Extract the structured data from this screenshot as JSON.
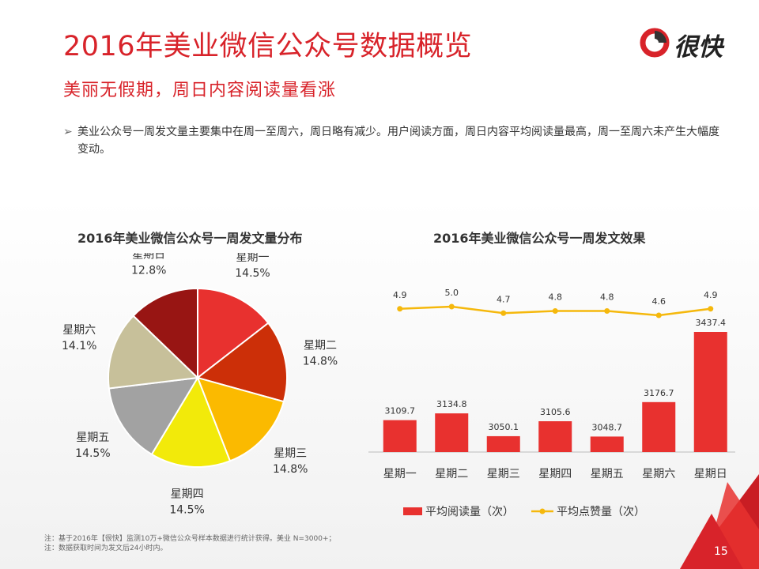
{
  "title": "2016年美业微信公众号数据概览",
  "subtitle": "美丽无假期，周日内容阅读量看涨",
  "logo_text": "很快",
  "bullet": "美业公众号一周发文量主要集中在周一至周六，周日略有减少。用户阅读方面，周日内容平均阅读量最高，周一至周六未产生大幅度变动。",
  "footnote": {
    "line1": "注：基于2016年【很快】监测10万+微信公众号样本数据进行统计获得。美业 N=3000+；",
    "line2": "注：数据获取时间为发文后24小时内。"
  },
  "page_number": "15",
  "colors": {
    "brand_red": "#d8232a",
    "bar_red": "#e8312f",
    "line_yellow": "#f5b80c"
  },
  "chart_data": [
    {
      "type": "pie",
      "title": "2016年美业微信公众号一周发文量分布",
      "slices": [
        {
          "label": "星期一",
          "value": 14.5,
          "display": "14.5%",
          "color": "#e8312f"
        },
        {
          "label": "星期二",
          "value": 14.8,
          "display": "14.8%",
          "color": "#cc2f08"
        },
        {
          "label": "星期三",
          "value": 14.8,
          "display": "14.8%",
          "color": "#fbba00"
        },
        {
          "label": "星期四",
          "value": 14.5,
          "display": "14.5%",
          "color": "#f2ea0a"
        },
        {
          "label": "星期五",
          "value": 14.5,
          "display": "14.5%",
          "color": "#a2a2a2"
        },
        {
          "label": "星期六",
          "value": 14.1,
          "display": "14.1%",
          "color": "#c7c09a"
        },
        {
          "label": "星期日",
          "value": 12.8,
          "display": "12.8%",
          "color": "#981513"
        }
      ]
    },
    {
      "type": "bar",
      "title": "2016年美业微信公众号一周发文效果",
      "categories": [
        "星期一",
        "星期二",
        "星期三",
        "星期四",
        "星期五",
        "星期六",
        "星期日"
      ],
      "series": [
        {
          "name": "平均阅读量（次）",
          "type": "bar",
          "color": "#e8312f",
          "values": [
            3109.7,
            3134.8,
            3050.1,
            3105.6,
            3048.7,
            3176.7,
            3437.4
          ]
        },
        {
          "name": "平均点赞量（次）",
          "type": "line",
          "color": "#f5b80c",
          "values": [
            4.9,
            5.0,
            4.7,
            4.8,
            4.8,
            4.6,
            4.9
          ]
        }
      ]
    }
  ]
}
